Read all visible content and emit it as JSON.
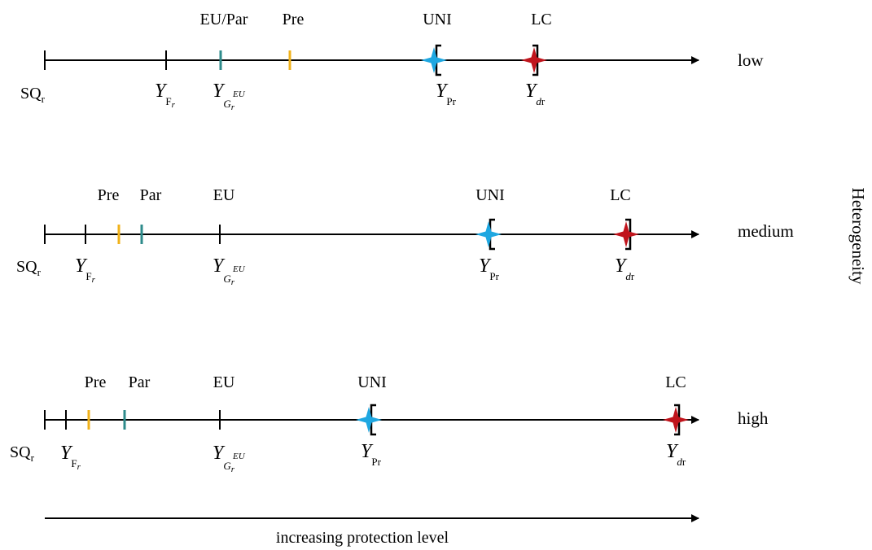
{
  "side_label": "Heterogeneity",
  "rows": [
    {
      "level": "low",
      "policy_labels": {
        "eu_par": "EU/Par",
        "pre": "Pre",
        "uni": "UNI",
        "lc": "LC"
      }
    },
    {
      "level": "medium",
      "policy_labels": {
        "pre": "Pre",
        "par": "Par",
        "eu": "EU",
        "uni": "UNI",
        "lc": "LC"
      }
    },
    {
      "level": "high",
      "policy_labels": {
        "pre": "Pre",
        "par": "Par",
        "eu": "EU",
        "uni": "UNI",
        "lc": "LC"
      }
    }
  ],
  "axis_symbols": {
    "sq": {
      "main": "SQ",
      "sub": "r"
    },
    "yf": {
      "main": "Y",
      "sub": "F",
      "subsub": "r"
    },
    "yg": {
      "main": "Y",
      "sub": "G",
      "subsub": "r",
      "sup": "EU"
    },
    "ypr": {
      "main": "Y",
      "sub": "Pr"
    },
    "ydr": {
      "main": "Y",
      "sub_italic": "d",
      "sub": "r"
    }
  },
  "bottom_arrow_label": "increasing protection level",
  "colors": {
    "pre_tick": "#f0b21a",
    "par_tick": "#2e8b8b",
    "uni_star": "#1ea7e1",
    "lc_star": "#c0141c",
    "line": "#000000"
  }
}
